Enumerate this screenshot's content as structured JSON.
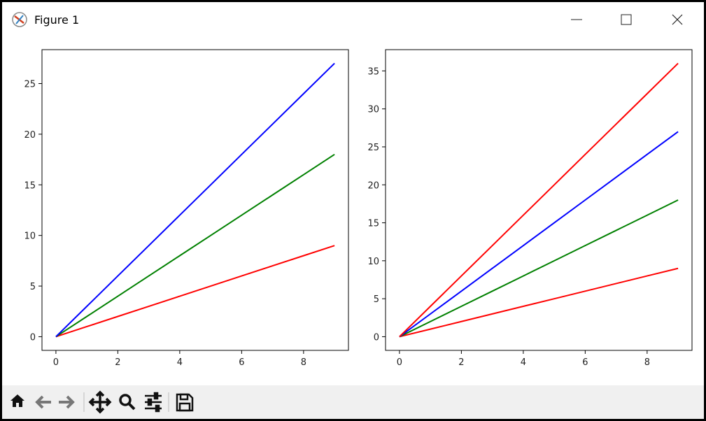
{
  "window_title": "Figure 1",
  "chart_data": [
    {
      "type": "line",
      "x": [
        0,
        1,
        2,
        3,
        4,
        5,
        6,
        7,
        8,
        9
      ],
      "series": [
        {
          "color": "#ff0000",
          "values": [
            0,
            1,
            2,
            3,
            4,
            5,
            6,
            7,
            8,
            9
          ]
        },
        {
          "color": "#008000",
          "values": [
            0,
            2,
            4,
            6,
            8,
            10,
            12,
            14,
            16,
            18
          ]
        },
        {
          "color": "#0000ff",
          "values": [
            0,
            3,
            6,
            9,
            12,
            15,
            18,
            21,
            24,
            27
          ]
        }
      ],
      "xlim": [
        -0.45,
        9.45
      ],
      "xticks": [
        0,
        2,
        4,
        6,
        8
      ],
      "ylim": [
        -1.35,
        28.35
      ],
      "yticks": [
        0,
        5,
        10,
        15,
        20,
        25
      ]
    },
    {
      "type": "line",
      "x": [
        0,
        1,
        2,
        3,
        4,
        5,
        6,
        7,
        8,
        9
      ],
      "series": [
        {
          "color": "#ff0000",
          "values": [
            0,
            1,
            2,
            3,
            4,
            5,
            6,
            7,
            8,
            9
          ]
        },
        {
          "color": "#008000",
          "values": [
            0,
            2,
            4,
            6,
            8,
            10,
            12,
            14,
            16,
            18
          ]
        },
        {
          "color": "#0000ff",
          "values": [
            0,
            3,
            6,
            9,
            12,
            15,
            18,
            21,
            24,
            27
          ]
        },
        {
          "color": "#ff0000",
          "values": [
            0,
            4,
            8,
            12,
            16,
            20,
            24,
            28,
            32,
            36
          ]
        }
      ],
      "xlim": [
        -0.45,
        9.45
      ],
      "xticks": [
        0,
        2,
        4,
        6,
        8
      ],
      "ylim": [
        -1.8,
        37.8
      ],
      "yticks": [
        0,
        5,
        10,
        15,
        20,
        25,
        30,
        35
      ]
    }
  ]
}
